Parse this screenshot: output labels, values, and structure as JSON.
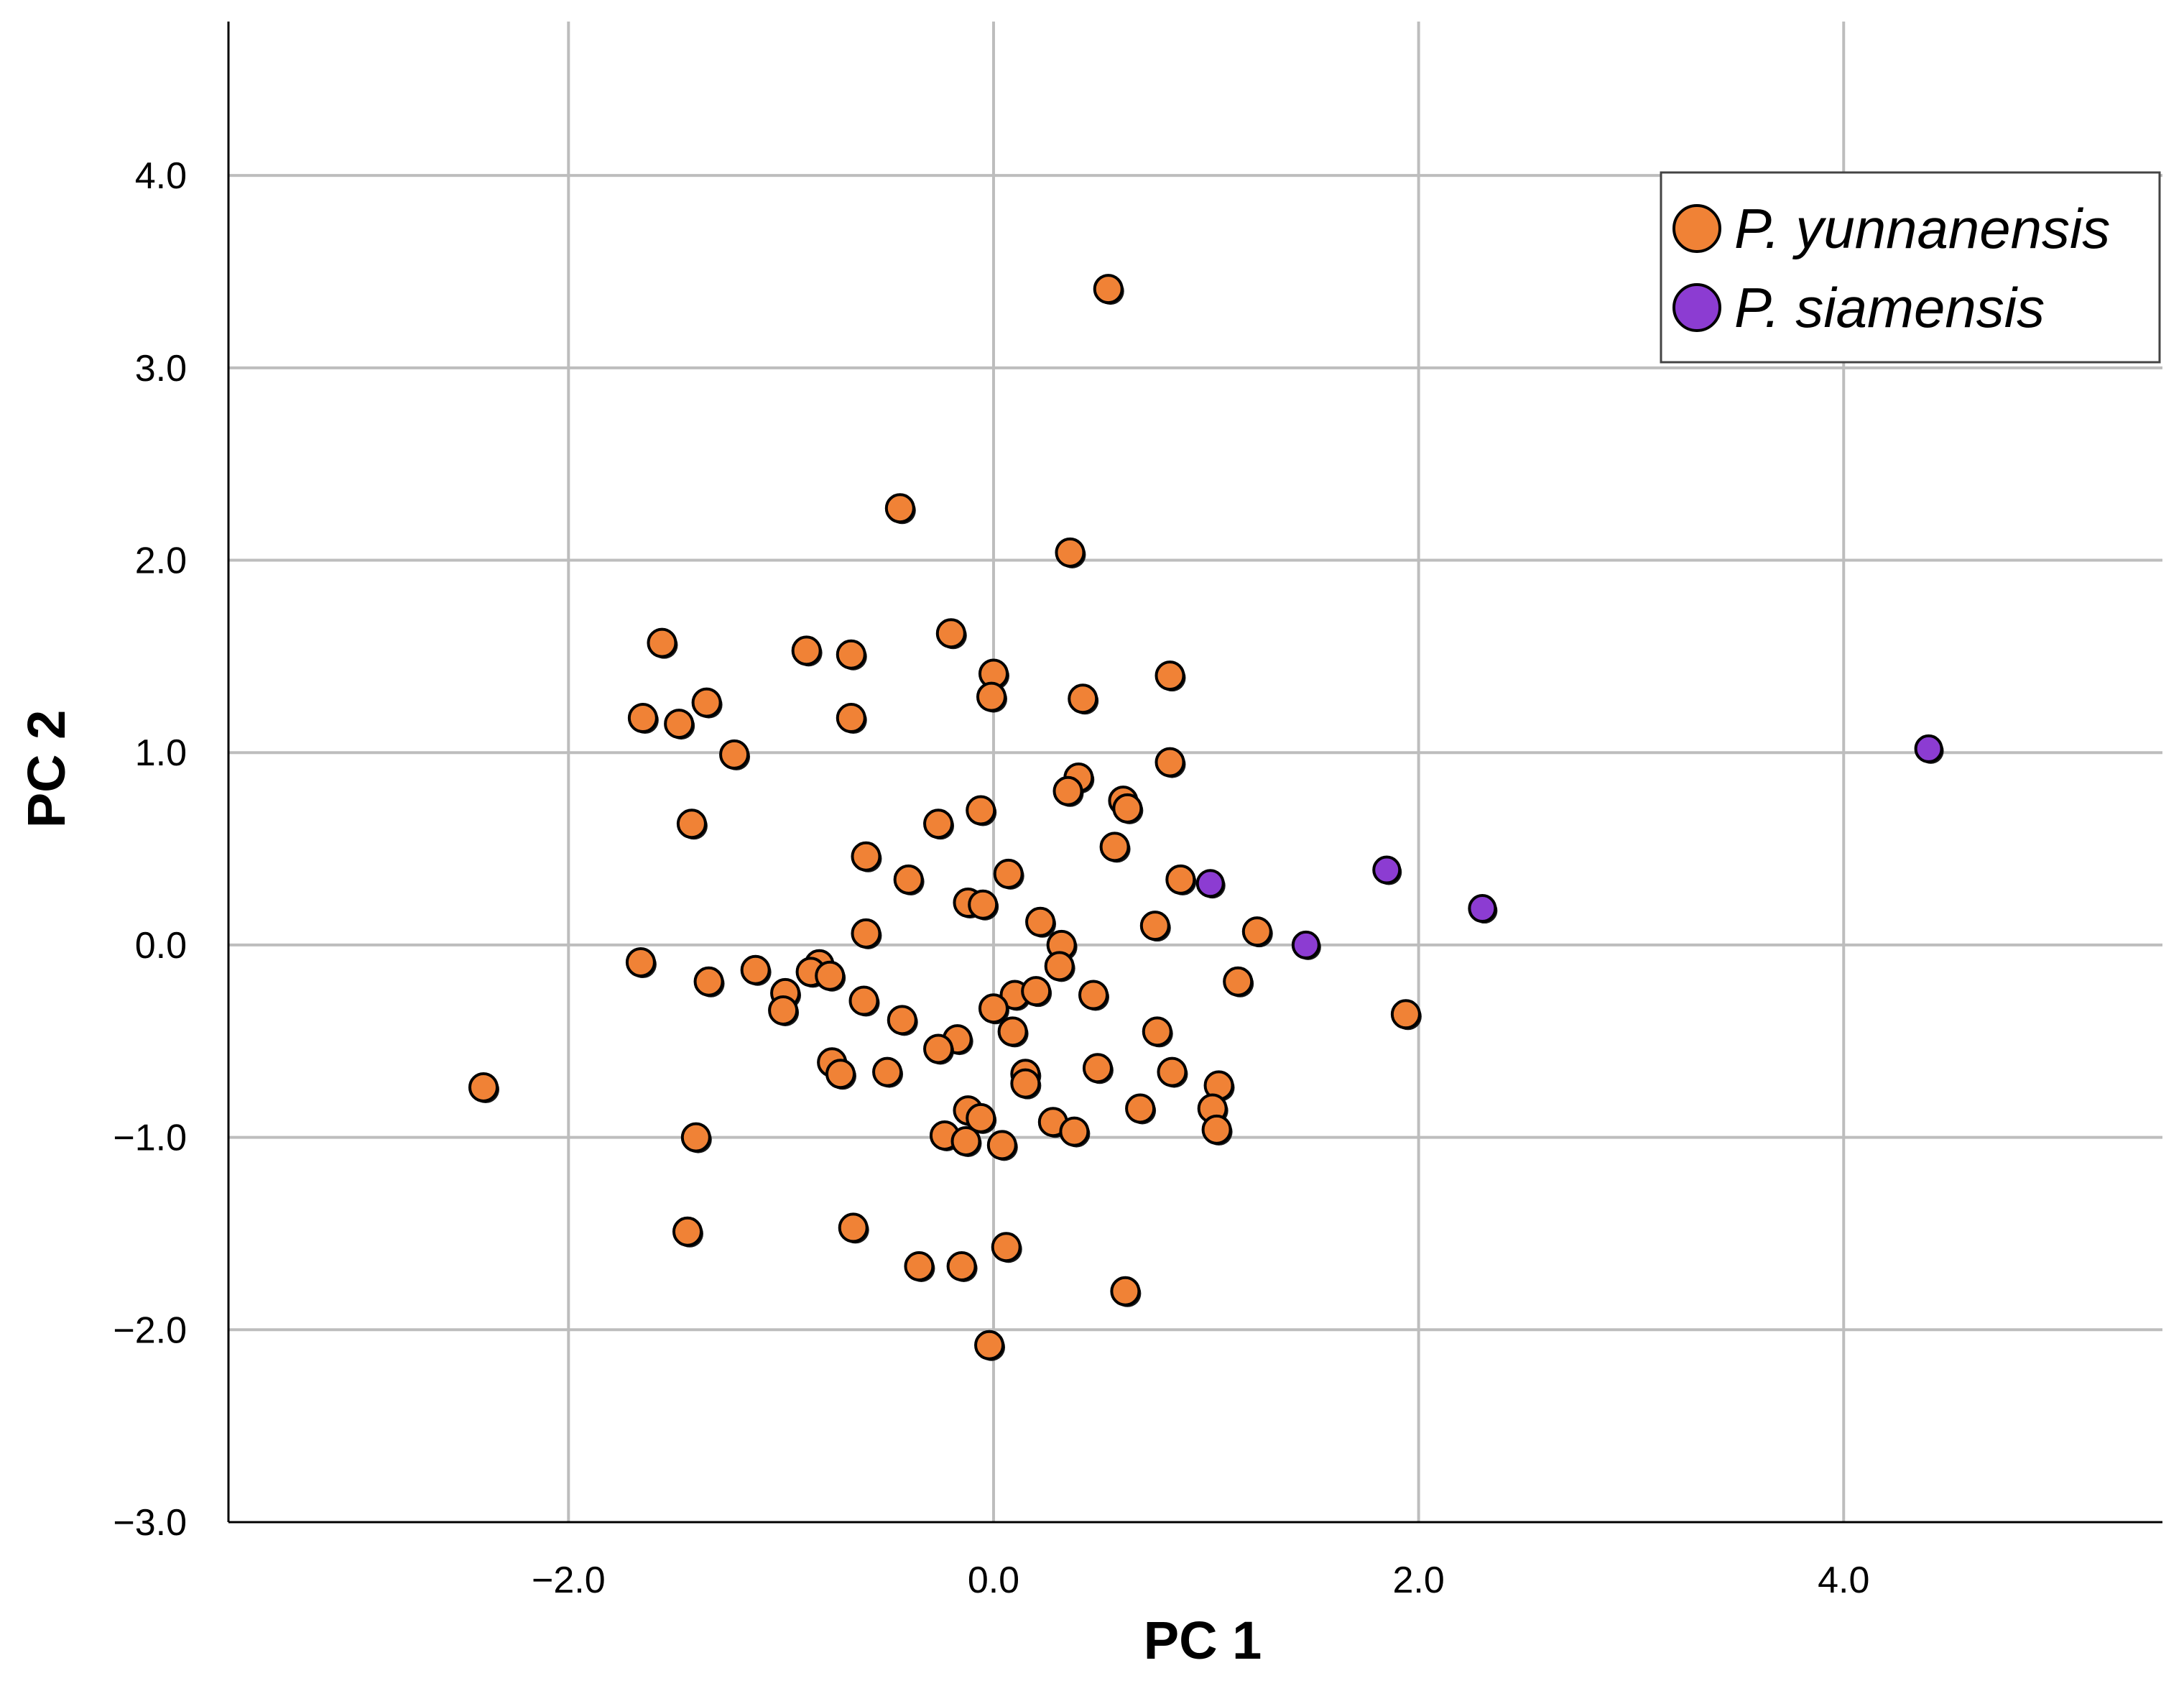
{
  "chart_data": {
    "type": "scatter",
    "title": "",
    "xlabel": "PC 1",
    "ylabel": "PC 2",
    "xlim": [
      -3.6,
      5.5
    ],
    "ylim": [
      -3.0,
      4.8
    ],
    "xticks": [
      -2.0,
      0.0,
      2.0,
      4.0
    ],
    "xtick_labels": [
      "−2.0",
      "0.0",
      "2.0",
      "4.0"
    ],
    "yticks": [
      -3.0,
      -2.0,
      -1.0,
      0.0,
      1.0,
      2.0,
      3.0,
      4.0
    ],
    "ytick_labels": [
      "−3.0",
      "−2.0",
      "−1.0",
      "0.0",
      "1.0",
      "2.0",
      "3.0",
      "4.0"
    ],
    "grid": true,
    "legend_position": "top-right",
    "series": [
      {
        "name": "P. yunnanensis",
        "color": "#F08236",
        "points": [
          [
            0.54,
            3.41
          ],
          [
            -0.44,
            2.27
          ],
          [
            0.36,
            2.04
          ],
          [
            -0.2,
            1.62
          ],
          [
            -1.56,
            1.57
          ],
          [
            -0.88,
            1.53
          ],
          [
            -0.67,
            1.51
          ],
          [
            0.0,
            1.41
          ],
          [
            0.83,
            1.4
          ],
          [
            -0.01,
            1.29
          ],
          [
            0.42,
            1.28
          ],
          [
            -1.35,
            1.26
          ],
          [
            -1.65,
            1.18
          ],
          [
            -1.48,
            1.15
          ],
          [
            -0.67,
            1.18
          ],
          [
            -1.22,
            0.99
          ],
          [
            0.83,
            0.95
          ],
          [
            0.4,
            0.87
          ],
          [
            0.35,
            0.8
          ],
          [
            0.61,
            0.75
          ],
          [
            0.63,
            0.71
          ],
          [
            -0.06,
            0.7
          ],
          [
            -0.26,
            0.63
          ],
          [
            -1.42,
            0.63
          ],
          [
            0.57,
            0.51
          ],
          [
            -0.6,
            0.46
          ],
          [
            0.07,
            0.37
          ],
          [
            -0.4,
            0.34
          ],
          [
            0.88,
            0.34
          ],
          [
            -0.12,
            0.22
          ],
          [
            -0.05,
            0.21
          ],
          [
            0.22,
            0.12
          ],
          [
            0.76,
            0.1
          ],
          [
            1.24,
            0.07
          ],
          [
            -0.6,
            0.06
          ],
          [
            0.32,
            0.0
          ],
          [
            -1.66,
            -0.09
          ],
          [
            -0.82,
            -0.1
          ],
          [
            -0.86,
            -0.14
          ],
          [
            -1.12,
            -0.13
          ],
          [
            0.31,
            -0.11
          ],
          [
            -0.77,
            -0.16
          ],
          [
            1.15,
            -0.19
          ],
          [
            -1.34,
            -0.19
          ],
          [
            -0.98,
            -0.25
          ],
          [
            0.47,
            -0.26
          ],
          [
            0.1,
            -0.26
          ],
          [
            -0.61,
            -0.29
          ],
          [
            -0.99,
            -0.34
          ],
          [
            0.2,
            -0.24
          ],
          [
            0.0,
            -0.33
          ],
          [
            1.94,
            -0.36
          ],
          [
            -0.43,
            -0.39
          ],
          [
            0.09,
            -0.45
          ],
          [
            0.77,
            -0.45
          ],
          [
            -0.17,
            -0.49
          ],
          [
            -0.26,
            -0.54
          ],
          [
            -0.76,
            -0.61
          ],
          [
            0.49,
            -0.64
          ],
          [
            0.15,
            -0.67
          ],
          [
            -0.72,
            -0.67
          ],
          [
            -0.5,
            -0.66
          ],
          [
            0.84,
            -0.66
          ],
          [
            1.06,
            -0.73
          ],
          [
            0.15,
            -0.72
          ],
          [
            -2.4,
            -0.74
          ],
          [
            0.69,
            -0.85
          ],
          [
            -0.12,
            -0.86
          ],
          [
            1.03,
            -0.85
          ],
          [
            -0.06,
            -0.9
          ],
          [
            0.28,
            -0.92
          ],
          [
            1.05,
            -0.96
          ],
          [
            0.38,
            -0.97
          ],
          [
            -1.4,
            -1.0
          ],
          [
            -0.23,
            -0.99
          ],
          [
            -0.13,
            -1.02
          ],
          [
            0.04,
            -1.04
          ],
          [
            -1.44,
            -1.49
          ],
          [
            -0.66,
            -1.47
          ],
          [
            0.06,
            -1.57
          ],
          [
            -0.35,
            -1.67
          ],
          [
            -0.15,
            -1.67
          ],
          [
            0.62,
            -1.8
          ],
          [
            -0.02,
            -2.08
          ]
        ]
      },
      {
        "name": "P. siamensis",
        "color": "#8C3CD2",
        "points": [
          [
            4.4,
            1.02
          ],
          [
            1.85,
            0.39
          ],
          [
            2.3,
            0.19
          ],
          [
            1.02,
            0.32
          ],
          [
            1.47,
            0.0
          ]
        ]
      }
    ]
  }
}
